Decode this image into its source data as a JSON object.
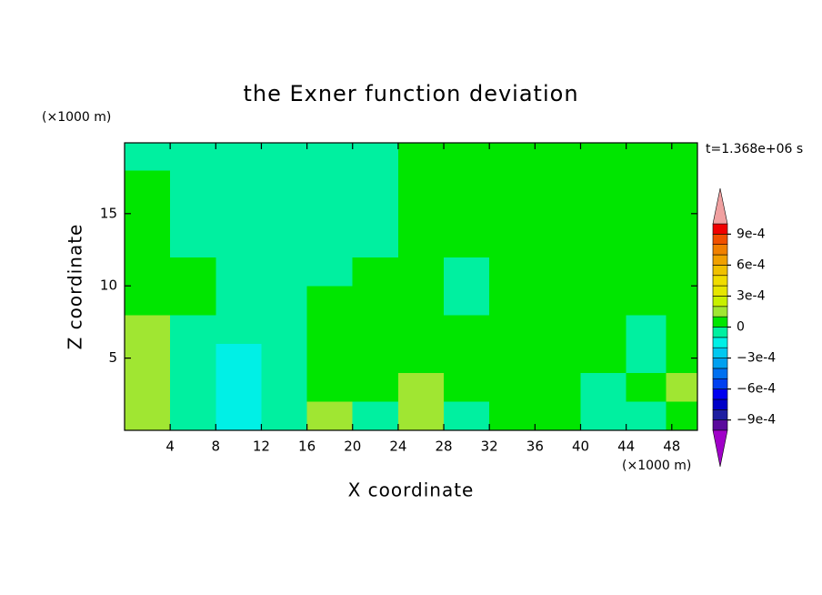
{
  "chart_data": {
    "type": "contour",
    "title": "the Exner function deviation",
    "x_label": "X coordinate",
    "y_label": "Z coordinate",
    "x_unit": "(×1000 m)",
    "y_unit": "(×1000 m)",
    "time_label": "t=1.368e+06 s",
    "xlim": [
      0,
      50.25
    ],
    "ylim": [
      0,
      19.9
    ],
    "xticks": [
      4,
      8,
      12,
      16,
      20,
      24,
      28,
      32,
      36,
      40,
      44,
      48
    ],
    "yticks": [
      5,
      10,
      15
    ],
    "x": [
      2,
      6,
      10,
      14,
      18,
      22,
      26,
      30,
      34,
      38,
      42,
      46,
      49
    ],
    "y": [
      1,
      3,
      5,
      7,
      9,
      11,
      13,
      15,
      17,
      19
    ],
    "z": [
      [
        0.00015,
        -5e-05,
        -0.00015,
        -5e-05,
        0.00015,
        -5e-05,
        0.00015,
        -5e-05,
        5e-05,
        5e-05,
        -5e-05,
        -5e-05,
        5e-05
      ],
      [
        0.00015,
        -5e-05,
        -0.00015,
        -5e-05,
        5e-05,
        5e-05,
        0.00015,
        5e-05,
        5e-05,
        5e-05,
        -5e-05,
        5e-05,
        0.00015
      ],
      [
        0.00015,
        -5e-05,
        -0.00015,
        -5e-05,
        5e-05,
        5e-05,
        5e-05,
        5e-05,
        5e-05,
        5e-05,
        5e-05,
        -5e-05,
        5e-05
      ],
      [
        0.00015,
        -5e-05,
        -5e-05,
        -5e-05,
        5e-05,
        5e-05,
        5e-05,
        5e-05,
        5e-05,
        5e-05,
        5e-05,
        -5e-05,
        5e-05
      ],
      [
        5e-05,
        5e-05,
        -5e-05,
        -5e-05,
        5e-05,
        5e-05,
        5e-05,
        -5e-05,
        5e-05,
        5e-05,
        5e-05,
        5e-05,
        5e-05
      ],
      [
        5e-05,
        5e-05,
        -5e-05,
        -5e-05,
        -5e-05,
        5e-05,
        5e-05,
        -5e-05,
        5e-05,
        5e-05,
        5e-05,
        5e-05,
        5e-05
      ],
      [
        5e-05,
        -5e-05,
        -5e-05,
        -5e-05,
        -5e-05,
        -5e-05,
        5e-05,
        5e-05,
        5e-05,
        5e-05,
        5e-05,
        5e-05,
        5e-05
      ],
      [
        5e-05,
        -5e-05,
        -5e-05,
        -5e-05,
        -5e-05,
        -5e-05,
        5e-05,
        5e-05,
        5e-05,
        5e-05,
        5e-05,
        5e-05,
        5e-05
      ],
      [
        5e-05,
        -5e-05,
        -5e-05,
        -5e-05,
        -5e-05,
        -5e-05,
        5e-05,
        5e-05,
        5e-05,
        5e-05,
        5e-05,
        5e-05,
        5e-05
      ],
      [
        -5e-05,
        -5e-05,
        -5e-05,
        -5e-05,
        -5e-05,
        -5e-05,
        5e-05,
        5e-05,
        5e-05,
        5e-05,
        5e-05,
        5e-05,
        5e-05
      ]
    ],
    "levels": [
      -0.001,
      -0.0009,
      -0.0008,
      -0.0007,
      -0.0006,
      -0.0005,
      -0.0004,
      -0.0003,
      -0.0002,
      -0.0001,
      0,
      0.0001,
      0.0002,
      0.0003,
      0.0004,
      0.0005,
      0.0006,
      0.0007,
      0.0008,
      0.0009,
      0.001
    ],
    "colors": [
      "#5a0a9c",
      "#1e1ea0",
      "#0000c8",
      "#0000f0",
      "#0040f0",
      "#0070f0",
      "#00a0f0",
      "#00c8f0",
      "#00f0e6",
      "#00f0a0",
      "#00e600",
      "#a0e632",
      "#c8f000",
      "#e6e600",
      "#f0dc00",
      "#f0c000",
      "#f0a000",
      "#f08000",
      "#f05000",
      "#f00000"
    ],
    "under_color": "#a000c8",
    "over_color": "#f0a0a0",
    "colorbar_ticks": [
      {
        "value": 0.0009,
        "label": "9e-4"
      },
      {
        "value": 0.0006,
        "label": "6e-4"
      },
      {
        "value": 0.0003,
        "label": "3e-4"
      },
      0,
      {
        "value": -0.0003,
        "label": "−3e-4"
      },
      {
        "value": -0.0006,
        "label": "−6e-4"
      },
      {
        "value": -0.0009,
        "label": "−9e-4"
      }
    ]
  }
}
